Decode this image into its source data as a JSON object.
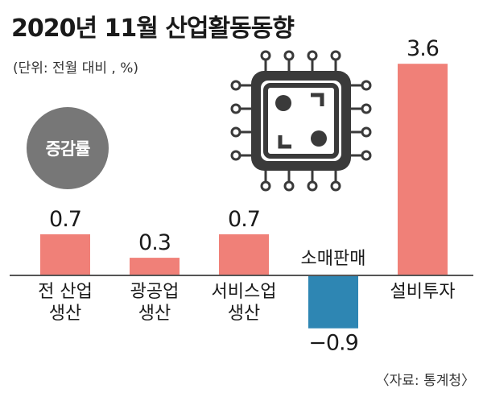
{
  "title": "2020년 11월 산업활동동향",
  "unit": "(단위: 전월 대비 , %)",
  "badge": "증감률",
  "source": "〈자료: 통계청〉",
  "colors": {
    "positive": "#f08078",
    "negative": "#2e86b3",
    "axis": "#555555",
    "chip": "#3a3a3a"
  },
  "chart_data": {
    "type": "bar",
    "categories": [
      [
        "전 산업",
        "생산"
      ],
      [
        "광공업",
        "생산"
      ],
      [
        "서비스업",
        "생산"
      ],
      [
        "소매판매"
      ],
      [
        "설비투자"
      ]
    ],
    "values": [
      0.7,
      0.3,
      0.7,
      -0.9,
      3.6
    ],
    "value_labels": [
      "0.7",
      "0.3",
      "0.7",
      "−0.9",
      "3.6"
    ],
    "title": "2020년 11월 산업활동동향",
    "xlabel": "",
    "ylabel": "",
    "grid": false,
    "icon": "microchip-icon"
  }
}
